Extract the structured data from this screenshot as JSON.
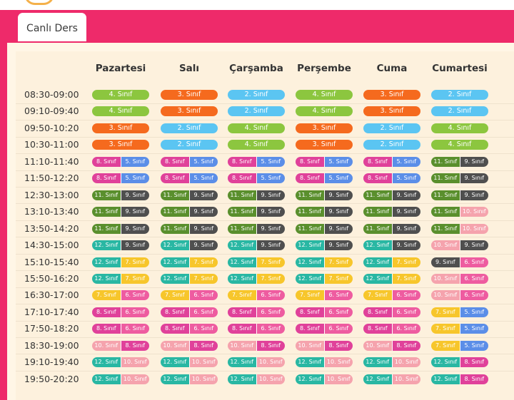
{
  "tab": {
    "label": "Canlı Ders"
  },
  "days": [
    "Pazartesi",
    "Salı",
    "Çarşamba",
    "Perşembe",
    "Cuma",
    "Cumartesi"
  ],
  "colors": {
    "2": "#5bc5f2",
    "3": "#f56a1e",
    "4": "#8cc63f",
    "5": "#5b8ee8",
    "6": "#ee5ca0",
    "7": "#f7c62b",
    "8": "#e0419a",
    "9": "#4f4f4f",
    "10": "#f5a3ad",
    "11": "#5a8f2d",
    "12": "#29b7a3"
  },
  "rows": [
    {
      "time": "08:30-09:00",
      "cells": [
        [
          "4. Sınıf"
        ],
        [
          "3. Sınıf"
        ],
        [
          "2. Sınıf"
        ],
        [
          "4. Sınıf"
        ],
        [
          "3. Sınıf"
        ],
        [
          "2. Sınıf"
        ]
      ]
    },
    {
      "time": "09:10-09:40",
      "cells": [
        [
          "4. Sınıf"
        ],
        [
          "3. Sınıf"
        ],
        [
          "2. Sınıf"
        ],
        [
          "4. Sınıf"
        ],
        [
          "3. Sınıf"
        ],
        [
          "2. Sınıf"
        ]
      ]
    },
    {
      "time": "09:50-10:20",
      "cells": [
        [
          "3. Sınıf"
        ],
        [
          "2. Sınıf"
        ],
        [
          "4. Sınıf"
        ],
        [
          "3. Sınıf"
        ],
        [
          "2. Sınıf"
        ],
        [
          "4. Sınıf"
        ]
      ]
    },
    {
      "time": "10:30-11:00",
      "cells": [
        [
          "3. Sınıf"
        ],
        [
          "2. Sınıf"
        ],
        [
          "4. Sınıf"
        ],
        [
          "3. Sınıf"
        ],
        [
          "2. Sınıf"
        ],
        [
          "4. Sınıf"
        ]
      ]
    },
    {
      "time": "11:10-11:40",
      "cells": [
        [
          "8. Sınıf",
          "5. Sınıf"
        ],
        [
          "8. Sınıf",
          "5. Sınıf"
        ],
        [
          "8. Sınıf",
          "5. Sınıf"
        ],
        [
          "8. Sınıf",
          "5. Sınıf"
        ],
        [
          "8. Sınıf",
          "5. Sınıf"
        ],
        [
          "11. Sınıf",
          "9. Sınıf"
        ]
      ]
    },
    {
      "time": "11:50-12:20",
      "cells": [
        [
          "8. Sınıf",
          "5. Sınıf"
        ],
        [
          "8. Sınıf",
          "5. Sınıf"
        ],
        [
          "8. Sınıf",
          "5. Sınıf"
        ],
        [
          "8. Sınıf",
          "5. Sınıf"
        ],
        [
          "8. Sınıf",
          "5. Sınıf"
        ],
        [
          "11. Sınıf",
          "9. Sınıf"
        ]
      ]
    },
    {
      "time": "12:30-13:00",
      "cells": [
        [
          "11. Sınıf",
          "9. Sınıf"
        ],
        [
          "11. Sınıf",
          "9. Sınıf"
        ],
        [
          "11. Sınıf",
          "9. Sınıf"
        ],
        [
          "11. Sınıf",
          "9. Sınıf"
        ],
        [
          "11. Sınıf",
          "9. Sınıf"
        ],
        [
          "11. Sınıf",
          "9. Sınıf"
        ]
      ]
    },
    {
      "time": "13:10-13:40",
      "cells": [
        [
          "11. Sınıf",
          "9. Sınıf"
        ],
        [
          "11. Sınıf",
          "9. Sınıf"
        ],
        [
          "11. Sınıf",
          "9. Sınıf"
        ],
        [
          "11. Sınıf",
          "9. Sınıf"
        ],
        [
          "11. Sınıf",
          "9. Sınıf"
        ],
        [
          "11. Sınıf",
          "10. Sınıf"
        ]
      ]
    },
    {
      "time": "13:50-14:20",
      "cells": [
        [
          "11. Sınıf",
          "9. Sınıf"
        ],
        [
          "11. Sınıf",
          "9. Sınıf"
        ],
        [
          "11. Sınıf",
          "9. Sınıf"
        ],
        [
          "11. Sınıf",
          "9. Sınıf"
        ],
        [
          "11. Sınıf",
          "9. Sınıf"
        ],
        [
          "11. Sınıf",
          "10. Sınıf"
        ]
      ]
    },
    {
      "time": "14:30-15:00",
      "cells": [
        [
          "12. Sınıf",
          "9. Sınıf"
        ],
        [
          "12. Sınıf",
          "9. Sınıf"
        ],
        [
          "12. Sınıf",
          "9. Sınıf"
        ],
        [
          "12. Sınıf",
          "9. Sınıf"
        ],
        [
          "12. Sınıf",
          "9. Sınıf"
        ],
        [
          "10. Sınıf",
          "9. Sınıf"
        ]
      ]
    },
    {
      "time": "15:10-15:40",
      "cells": [
        [
          "12. Sınıf",
          "7. Sınıf"
        ],
        [
          "12. Sınıf",
          "7. Sınıf"
        ],
        [
          "12. Sınıf",
          "7. Sınıf"
        ],
        [
          "12. Sınıf",
          "7. Sınıf"
        ],
        [
          "12. Sınıf",
          "7. Sınıf"
        ],
        [
          "9. Sınıf",
          "6. Sınıf"
        ]
      ]
    },
    {
      "time": "15:50-16:20",
      "cells": [
        [
          "12. Sınıf",
          "7. Sınıf"
        ],
        [
          "12. Sınıf",
          "7. Sınıf"
        ],
        [
          "12. Sınıf",
          "7. Sınıf"
        ],
        [
          "12. Sınıf",
          "7. Sınıf"
        ],
        [
          "12. Sınıf",
          "7. Sınıf"
        ],
        [
          "10. Sınıf",
          "6. Sınıf"
        ]
      ]
    },
    {
      "time": "16:30-17:00",
      "cells": [
        [
          "7. Sınıf",
          "6. Sınıf"
        ],
        [
          "7. Sınıf",
          "6. Sınıf"
        ],
        [
          "7. Sınıf",
          "6. Sınıf"
        ],
        [
          "7. Sınıf",
          "6. Sınıf"
        ],
        [
          "7. Sınıf",
          "6. Sınıf"
        ],
        [
          "10. Sınıf",
          "6. Sınıf"
        ]
      ]
    },
    {
      "time": "17:10-17:40",
      "cells": [
        [
          "8. Sınıf",
          "6. Sınıf"
        ],
        [
          "8. Sınıf",
          "6. Sınıf"
        ],
        [
          "8. Sınıf",
          "6. Sınıf"
        ],
        [
          "8. Sınıf",
          "6. Sınıf"
        ],
        [
          "8. Sınıf",
          "6. Sınıf"
        ],
        [
          "7. Sınıf",
          "5. Sınıf"
        ]
      ]
    },
    {
      "time": "17:50-18:20",
      "cells": [
        [
          "8. Sınıf",
          "6. Sınıf"
        ],
        [
          "8. Sınıf",
          "6. Sınıf"
        ],
        [
          "8. Sınıf",
          "6. Sınıf"
        ],
        [
          "8. Sınıf",
          "6. Sınıf"
        ],
        [
          "8. Sınıf",
          "6. Sınıf"
        ],
        [
          "7. Sınıf",
          "5. Sınıf"
        ]
      ]
    },
    {
      "time": "18:30-19:00",
      "cells": [
        [
          "10. Sınıf",
          "8. Sınıf"
        ],
        [
          "10. Sınıf",
          "8. Sınıf"
        ],
        [
          "10. Sınıf",
          "8. Sınıf"
        ],
        [
          "10. Sınıf",
          "8. Sınıf"
        ],
        [
          "10. Sınıf",
          "8. Sınıf"
        ],
        [
          "7. Sınıf",
          "5. Sınıf"
        ]
      ]
    },
    {
      "time": "19:10-19:40",
      "cells": [
        [
          "12. Sınıf",
          "10. Sınıf"
        ],
        [
          "12. Sınıf",
          "10. Sınıf"
        ],
        [
          "12. Sınıf",
          "10. Sınıf"
        ],
        [
          "12. Sınıf",
          "10. Sınıf"
        ],
        [
          "12. Sınıf",
          "10. Sınıf"
        ],
        [
          "12. Sınıf",
          "8. Sınıf"
        ]
      ]
    },
    {
      "time": "19:50-20:20",
      "cells": [
        [
          "12. Sınıf",
          "10. Sınıf"
        ],
        [
          "12. Sınıf",
          "10. Sınıf"
        ],
        [
          "12. Sınıf",
          "10. Sınıf"
        ],
        [
          "12. Sınıf",
          "10. Sınıf"
        ],
        [
          "12. Sınıf",
          "10. Sınıf"
        ],
        [
          "12. Sınıf",
          "8. Sınıf"
        ]
      ]
    }
  ]
}
